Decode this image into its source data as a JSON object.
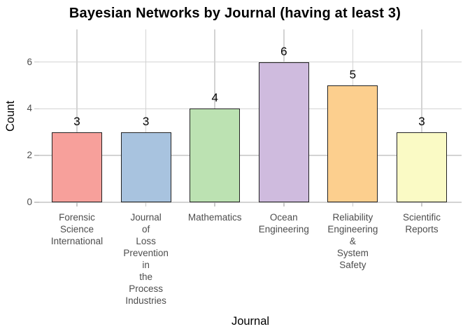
{
  "chart_data": {
    "type": "bar",
    "title": "Bayesian Networks by Journal (having at least 3)",
    "xlabel": "Journal",
    "ylabel": "Count",
    "categories": [
      "Forensic Science International",
      "Journal of Loss Prevention in the Process Industries",
      "Mathematics",
      "Ocean Engineering",
      "Reliability Engineering & System Safety",
      "Scientific Reports"
    ],
    "values": [
      3,
      3,
      4,
      6,
      5,
      3
    ],
    "bar_labels": [
      "3",
      "3",
      "4",
      "6",
      "5",
      "3"
    ],
    "yticks": [
      0,
      2,
      4,
      6
    ],
    "ylim": [
      0,
      7.4
    ],
    "grid": true,
    "legend_position": "none",
    "x_label_wrapping": "one word per line",
    "colors": {
      "bars": [
        "#F7A09B",
        "#A8C3DF",
        "#BCE2B2",
        "#CFBBDE",
        "#FCCF8E",
        "#FAFAC5"
      ],
      "bar_border": "#222222",
      "gridline": "#D3D3D3",
      "tick_mark": "#C9C9C9",
      "tick_label": "#4D4D4D",
      "text": "#000000",
      "background": "#FFFFFF"
    }
  }
}
